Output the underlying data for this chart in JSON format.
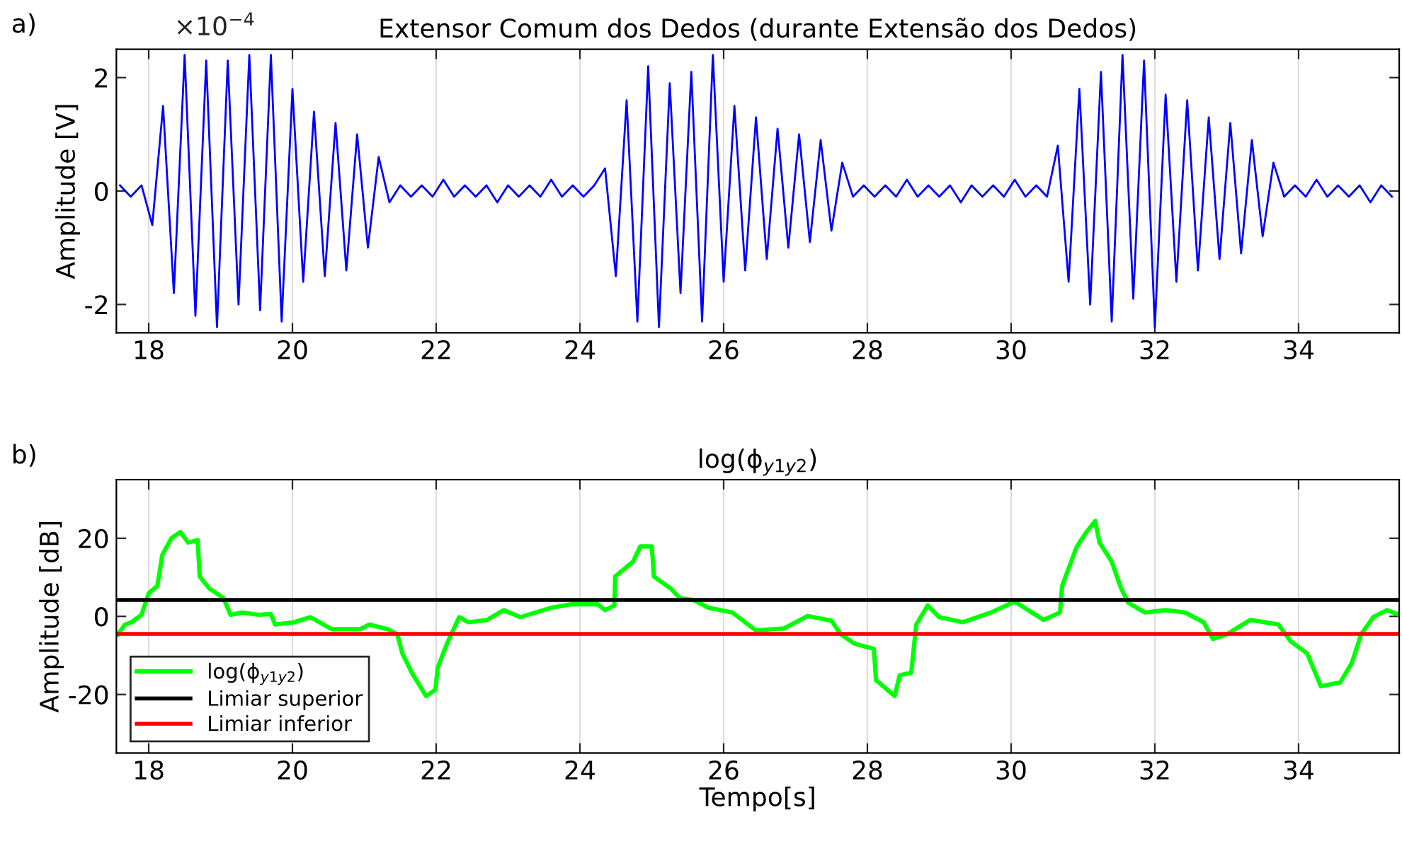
{
  "chart_data": [
    {
      "type": "line",
      "title": "Extensor Comum dos Dedos (durante Extensão dos Dedos)",
      "ylabel": "Amplitude [V]",
      "annotations": [
        "a)",
        "×10$^{−4}$"
      ],
      "xlim": [
        17.55,
        35.4
      ],
      "xticks": [
        18,
        20,
        22,
        24,
        26,
        28,
        30,
        32,
        34
      ],
      "ylim": [
        -2.5,
        2.5
      ],
      "yticks": [
        -2,
        0,
        2
      ],
      "grid": "x",
      "series": [
        {
          "color": "#0000ff",
          "x": [
            17.6,
            17.75,
            17.9,
            18.05,
            18.2,
            18.35,
            18.5,
            18.65,
            18.8,
            18.95,
            19.1,
            19.25,
            19.4,
            19.55,
            19.7,
            19.85,
            20.0,
            20.15,
            20.3,
            20.45,
            20.6,
            20.75,
            20.9,
            21.05,
            21.2,
            21.35,
            21.5,
            21.65,
            21.8,
            21.95,
            22.1,
            22.25,
            22.4,
            22.55,
            22.7,
            22.85,
            23.0,
            23.15,
            23.3,
            23.45,
            23.6,
            23.75,
            23.9,
            24.05,
            24.2,
            24.35,
            24.5,
            24.65,
            24.8,
            24.95,
            25.1,
            25.25,
            25.4,
            25.55,
            25.7,
            25.85,
            26.0,
            26.15,
            26.3,
            26.45,
            26.6,
            26.75,
            26.9,
            27.05,
            27.2,
            27.35,
            27.5,
            27.65,
            27.8,
            27.95,
            28.1,
            28.25,
            28.4,
            28.55,
            28.7,
            28.85,
            29.0,
            29.15,
            29.3,
            29.45,
            29.6,
            29.75,
            29.9,
            30.05,
            30.2,
            30.35,
            30.5,
            30.65,
            30.8,
            30.95,
            31.1,
            31.25,
            31.4,
            31.55,
            31.7,
            31.85,
            32.0,
            32.15,
            32.3,
            32.45,
            32.6,
            32.75,
            32.9,
            33.05,
            33.2,
            33.35,
            33.5,
            33.65,
            33.8,
            33.95,
            34.1,
            34.25,
            34.4,
            34.55,
            34.7,
            34.85,
            35.0,
            35.15,
            35.3
          ],
          "values": [
            0.1,
            -0.1,
            0.1,
            -0.6,
            1.5,
            -1.8,
            2.4,
            -2.2,
            2.3,
            -2.4,
            2.3,
            -2.0,
            2.4,
            -2.1,
            2.4,
            -2.3,
            1.8,
            -1.6,
            1.4,
            -1.5,
            1.2,
            -1.4,
            1.0,
            -1.0,
            0.6,
            -0.2,
            0.1,
            -0.1,
            0.1,
            -0.1,
            0.2,
            -0.1,
            0.1,
            -0.1,
            0.1,
            -0.2,
            0.1,
            -0.1,
            0.1,
            -0.1,
            0.2,
            -0.1,
            0.1,
            -0.1,
            0.1,
            0.4,
            -1.5,
            1.6,
            -2.3,
            2.2,
            -2.4,
            1.9,
            -1.8,
            2.1,
            -2.3,
            2.4,
            -1.6,
            1.5,
            -1.4,
            1.3,
            -1.2,
            1.1,
            -1.0,
            1.0,
            -0.9,
            0.9,
            -0.7,
            0.5,
            -0.1,
            0.1,
            -0.1,
            0.1,
            -0.1,
            0.2,
            -0.1,
            0.1,
            -0.1,
            0.1,
            -0.2,
            0.1,
            -0.1,
            0.1,
            -0.1,
            0.2,
            -0.1,
            0.1,
            -0.1,
            0.8,
            -1.6,
            1.8,
            -2.0,
            2.1,
            -2.3,
            2.4,
            -1.9,
            2.3,
            -2.4,
            1.7,
            -1.6,
            1.6,
            -1.4,
            1.3,
            -1.2,
            1.2,
            -1.1,
            0.9,
            -0.8,
            0.5,
            -0.1,
            0.1,
            -0.1,
            0.2,
            -0.1,
            0.1,
            -0.1,
            0.1,
            -0.2,
            0.1,
            -0.1
          ]
        }
      ]
    },
    {
      "type": "line",
      "title": "log(ϕ$_{y1y2}$)",
      "xlabel": "Tempo[s]",
      "ylabel": "Amplitude [dB]",
      "annotations": [
        "b)"
      ],
      "xlim": [
        17.55,
        35.4
      ],
      "xticks": [
        18,
        20,
        22,
        24,
        26,
        28,
        30,
        32,
        34
      ],
      "ylim": [
        -35,
        35
      ],
      "yticks": [
        -20,
        0,
        20
      ],
      "grid": "x",
      "legend": "bottom left",
      "series": [
        {
          "name": "log(ϕ$_{y1y2}$)",
          "color": "#00ff00",
          "x": [
            17.57,
            17.67,
            17.76,
            17.9,
            18.0,
            18.12,
            18.19,
            18.32,
            18.44,
            18.55,
            18.68,
            18.71,
            18.84,
            19.04,
            19.14,
            19.3,
            19.53,
            19.7,
            19.76,
            20.02,
            20.25,
            20.55,
            20.94,
            21.07,
            21.33,
            21.46,
            21.53,
            21.66,
            21.86,
            21.99,
            22.02,
            22.15,
            22.32,
            22.45,
            22.71,
            22.94,
            23.17,
            23.6,
            23.89,
            24.25,
            24.35,
            24.48,
            24.49,
            24.74,
            24.84,
            25.0,
            25.03,
            25.26,
            25.39,
            25.59,
            25.79,
            26.12,
            26.45,
            26.84,
            27.17,
            27.5,
            27.63,
            27.82,
            28.09,
            28.12,
            28.38,
            28.45,
            28.61,
            28.68,
            28.84,
            29.0,
            29.33,
            29.72,
            30.05,
            30.45,
            30.68,
            30.71,
            30.91,
            31.04,
            31.17,
            31.23,
            31.4,
            31.53,
            31.63,
            31.86,
            32.15,
            32.42,
            32.68,
            32.81,
            33.0,
            33.33,
            33.72,
            33.89,
            34.12,
            34.31,
            34.58,
            34.74,
            34.87,
            35.04,
            35.23,
            35.4
          ],
          "values": [
            -4.6,
            -2.1,
            -1.5,
            0.4,
            5.9,
            7.8,
            15.8,
            20.1,
            21.6,
            18.9,
            19.5,
            10.2,
            7.2,
            4.7,
            0.4,
            1.0,
            0.4,
            0.6,
            -2.1,
            -1.5,
            -0.2,
            -3.3,
            -3.3,
            -2.1,
            -3.3,
            -4.6,
            -9.5,
            -14.4,
            -20.4,
            -18.8,
            -13.2,
            -7.0,
            -0.2,
            -1.5,
            -0.9,
            1.6,
            -0.2,
            2.2,
            3.1,
            3.1,
            1.6,
            2.8,
            10.2,
            14.0,
            17.9,
            17.9,
            10.2,
            7.2,
            4.7,
            4.1,
            2.2,
            1.0,
            -3.6,
            -3.1,
            0.1,
            -1.1,
            -4.6,
            -7.0,
            -8.3,
            -16.3,
            -20.4,
            -15.1,
            -14.4,
            -2.1,
            2.8,
            -0.2,
            -1.5,
            1.0,
            3.8,
            -0.9,
            1.0,
            7.8,
            17.7,
            21.4,
            24.4,
            18.9,
            14.0,
            7.2,
            3.5,
            1.0,
            1.6,
            1.0,
            -1.5,
            -5.8,
            -4.6,
            -0.9,
            -2.1,
            -6.4,
            -9.5,
            -17.9,
            -16.9,
            -12.0,
            -4.6,
            -0.2,
            1.6,
            0.4
          ]
        }
      ],
      "ref_lines": [
        {
          "axis": "y",
          "value": 4.2,
          "label": "Limiar superior",
          "color": "#000000"
        },
        {
          "axis": "y",
          "value": -4.5,
          "label": "Limiar inferior",
          "color": "#ff0000"
        }
      ]
    }
  ]
}
